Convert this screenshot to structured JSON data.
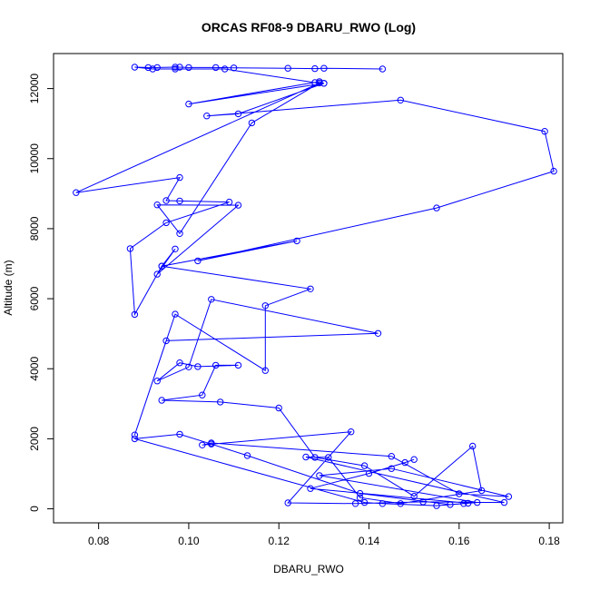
{
  "chart_data": {
    "type": "line",
    "title": "ORCAS RF08-9 DBARU_RWO (Log)",
    "xlabel": "DBARU_RWO",
    "ylabel": "Altitude (m)",
    "xlim": [
      0.07,
      0.183
    ],
    "ylim": [
      -400,
      13000
    ],
    "xticks": [
      0.08,
      0.1,
      0.12,
      0.14,
      0.16,
      0.18
    ],
    "xtick_labels": [
      "0.08",
      "0.10",
      "0.12",
      "0.14",
      "0.16",
      "0.18"
    ],
    "yticks": [
      0,
      2000,
      4000,
      6000,
      8000,
      10000,
      12000
    ],
    "ytick_labels": [
      "0",
      "2000",
      "4000",
      "6000",
      "8000",
      "10000",
      "12000"
    ],
    "grid": false,
    "color": "#0000ff",
    "series": [
      {
        "x": [
          0.143,
          0.13,
          0.128,
          0.122,
          0.11,
          0.106,
          0.1,
          0.098,
          0.097,
          0.093,
          0.091,
          0.088,
          0.092,
          0.097,
          0.108,
          0.128,
          0.13,
          0.129,
          0.1,
          0.13,
          0.111,
          0.104,
          0.147,
          0.179,
          0.181,
          0.155,
          0.102,
          0.124,
          0.094,
          0.088,
          0.087,
          0.095,
          0.109,
          0.098,
          0.095,
          0.098,
          0.075,
          0.129,
          0.114,
          0.098,
          0.093,
          0.111,
          0.093,
          0.097,
          0.094,
          0.127,
          0.117,
          0.117,
          0.097,
          0.088,
          0.095,
          0.142,
          0.105,
          0.1,
          0.093,
          0.098,
          0.102,
          0.111,
          0.106,
          0.103,
          0.094,
          0.107,
          0.12,
          0.128,
          0.139,
          0.15,
          0.163,
          0.165,
          0.147,
          0.138,
          0.131,
          0.126,
          0.17,
          0.152,
          0.137,
          0.122,
          0.136,
          0.103,
          0.105,
          0.145,
          0.16,
          0.171,
          0.145,
          0.129,
          0.164,
          0.158,
          0.138,
          0.113,
          0.105,
          0.098,
          0.088,
          0.139,
          0.143,
          0.155,
          0.161,
          0.162,
          0.127,
          0.14,
          0.148,
          0.15
        ],
        "y": [
          12560,
          12580,
          12570,
          12580,
          12590,
          12600,
          12600,
          12610,
          12610,
          12600,
          12600,
          12610,
          12560,
          12560,
          12560,
          12170,
          12150,
          12200,
          11560,
          12150,
          11280,
          11220,
          11670,
          10780,
          9640,
          8590,
          7080,
          7650,
          6930,
          5550,
          7430,
          8170,
          8760,
          8790,
          8800,
          9460,
          9030,
          12160,
          11020,
          7860,
          8680,
          8670,
          6700,
          7420,
          6930,
          6280,
          5800,
          3950,
          5560,
          2110,
          4800,
          5010,
          5980,
          4050,
          3650,
          4170,
          4060,
          4100,
          4100,
          3250,
          3100,
          3050,
          2880,
          1470,
          1230,
          360,
          1790,
          520,
          150,
          320,
          1470,
          1480,
          180,
          200,
          150,
          170,
          2200,
          1820,
          1880,
          1500,
          430,
          350,
          1150,
          950,
          180,
          120,
          440,
          1520,
          1850,
          2130,
          2000,
          180,
          150,
          90,
          150,
          160,
          580,
          1010,
          1320,
          1410
        ]
      }
    ]
  }
}
